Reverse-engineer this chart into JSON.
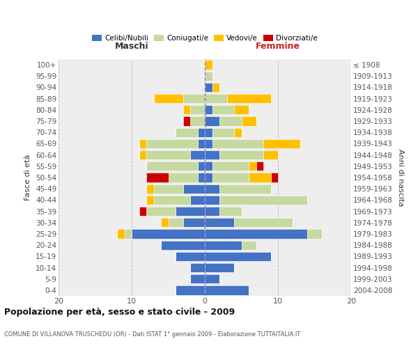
{
  "age_groups": [
    "0-4",
    "5-9",
    "10-14",
    "15-19",
    "20-24",
    "25-29",
    "30-34",
    "35-39",
    "40-44",
    "45-49",
    "50-54",
    "55-59",
    "60-64",
    "65-69",
    "70-74",
    "75-79",
    "80-84",
    "85-89",
    "90-94",
    "95-99",
    "100+"
  ],
  "birth_years": [
    "2004-2008",
    "1999-2003",
    "1994-1998",
    "1989-1993",
    "1984-1988",
    "1979-1983",
    "1974-1978",
    "1969-1973",
    "1964-1968",
    "1959-1963",
    "1954-1958",
    "1949-1953",
    "1944-1948",
    "1939-1943",
    "1934-1938",
    "1929-1933",
    "1924-1928",
    "1919-1923",
    "1914-1918",
    "1909-1913",
    "≤ 1908"
  ],
  "colors": {
    "celibi": "#4472c4",
    "coniugati": "#c5d9a0",
    "vedovi": "#ffc000",
    "divorziati": "#cc0000"
  },
  "males": {
    "celibi": [
      4,
      2,
      2,
      4,
      6,
      10,
      3,
      4,
      2,
      3,
      1,
      1,
      2,
      1,
      1,
      0,
      0,
      0,
      0,
      0,
      0
    ],
    "coniugati": [
      0,
      0,
      0,
      0,
      0,
      1,
      2,
      4,
      5,
      4,
      4,
      7,
      6,
      7,
      3,
      2,
      2,
      3,
      0,
      0,
      0
    ],
    "vedovi": [
      0,
      0,
      0,
      0,
      0,
      1,
      1,
      0,
      1,
      1,
      0,
      0,
      1,
      1,
      0,
      0,
      1,
      4,
      0,
      0,
      0
    ],
    "divorziati": [
      0,
      0,
      0,
      0,
      0,
      0,
      0,
      1,
      0,
      0,
      3,
      0,
      0,
      0,
      0,
      1,
      0,
      0,
      0,
      0,
      0
    ]
  },
  "females": {
    "celibi": [
      6,
      2,
      4,
      9,
      5,
      14,
      4,
      2,
      2,
      2,
      1,
      1,
      2,
      1,
      1,
      2,
      1,
      0,
      1,
      0,
      0
    ],
    "coniugati": [
      0,
      0,
      0,
      0,
      2,
      2,
      8,
      3,
      12,
      7,
      5,
      5,
      6,
      7,
      3,
      3,
      3,
      3,
      0,
      1,
      0
    ],
    "vedovi": [
      0,
      0,
      0,
      0,
      0,
      0,
      0,
      0,
      0,
      0,
      3,
      1,
      2,
      5,
      1,
      2,
      2,
      6,
      1,
      0,
      1
    ],
    "divorziati": [
      0,
      0,
      0,
      0,
      0,
      0,
      0,
      0,
      0,
      0,
      1,
      1,
      0,
      0,
      0,
      0,
      0,
      0,
      0,
      0,
      0
    ]
  },
  "xlim": [
    -20,
    20
  ],
  "xticks": [
    -20,
    -10,
    0,
    10,
    20
  ],
  "xticklabels": [
    "20",
    "10",
    "0",
    "10",
    "20"
  ],
  "title": "Popolazione per età, sesso e stato civile - 2009",
  "subtitle": "COMUNE DI VILLANOVA TRUSCHEDU (OR) - Dati ISTAT 1° gennaio 2009 - Elaborazione TUTTAITALIA.IT",
  "label_maschi": "Maschi",
  "label_femmine": "Femmine",
  "ylabel_left": "Fasce di età",
  "ylabel_right": "Anni di nascita",
  "legend_labels": [
    "Celibi/Nubili",
    "Coniugati/e",
    "Vedovi/e",
    "Divorziati/e"
  ],
  "bg_color": "#eeeeee",
  "bar_edge_color": "white",
  "center_line_color": "#8888bb",
  "grid_color": "#bbbbbb",
  "label_color": "#333333",
  "tick_color": "#555555"
}
